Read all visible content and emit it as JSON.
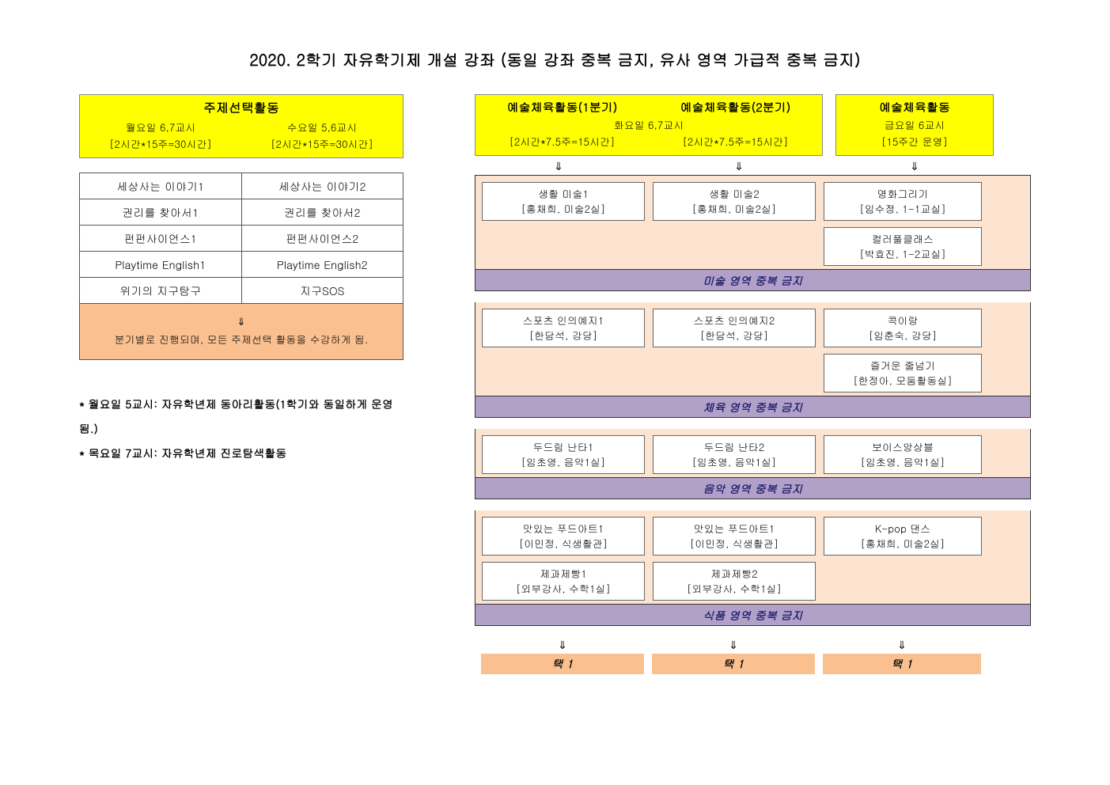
{
  "title": "2020. 2학기 자유학기제 개설 강좌 (동일 강좌 중복 금지, 유사 영역 가급적 중복 금지)",
  "left": {
    "header_title": "주제선택활동",
    "mon": {
      "time": "월요일 6,7교시",
      "hours": "[2시간*15주=30시간]"
    },
    "wed": {
      "time": "수요일 5,6교시",
      "hours": "[2시간*15주=30시간]"
    },
    "rows": [
      [
        "세상사는 이야기1",
        "세상사는 이야기2"
      ],
      [
        "권리를 찾아서1",
        "권리를 찾아서2"
      ],
      [
        "펀펀사이언스1",
        "펀펀사이언스2"
      ],
      [
        "Playtime English1",
        "Playtime English2"
      ],
      [
        "위기의 지구탐구",
        "지구SOS"
      ]
    ],
    "note_arrow": "⇓",
    "note_text": "분기별로 진행되며, 모든 주제선택 활동을 수강하게 됨.",
    "footer1": "* 월요일 5교시: 자유학년제 동아리활동(1학기와 동일하게 운영됨.)",
    "footer2": "* 목요일 7교시: 자유학년제 진로탐색활동"
  },
  "right": {
    "header": {
      "tue1_title": "예술체육활동(1분기)",
      "tue2_title": "예술체육활동(2분기)",
      "tue_time": "화요일 6,7교시",
      "tue1_hours": "[2시간*7.5주=15시간]",
      "tue2_hours": "[2시간*7.5주=15시간]",
      "fri_title": "예술체육활동",
      "fri_time": "금요일 6교시",
      "fri_hours": "[15주간 운영]"
    },
    "arrow": "⇓",
    "sections": [
      {
        "col1": [
          {
            "t": "생활 미술1",
            "s": "[홍채희, 미술2실]"
          }
        ],
        "col2": [
          {
            "t": "생활 미술2",
            "s": "[홍채희, 미술2실]"
          }
        ],
        "col3": [
          {
            "t": "명화그리기",
            "s": "[임수정, 1-1교실]"
          },
          {
            "t": "컬러풀클래스",
            "s": "[박효진, 1-2교실]"
          }
        ],
        "footer": "미술 영역 중복 금지"
      },
      {
        "col1": [
          {
            "t": "스포츠 인의예지1",
            "s": "[한담석, 강당]"
          }
        ],
        "col2": [
          {
            "t": "스포츠 인의예지2",
            "s": "[한담석, 강당]"
          }
        ],
        "col3": [
          {
            "t": "콕이랑",
            "s": "[임춘숙, 강당]"
          },
          {
            "t": "즐거운 줄넘기",
            "s": "[한정아, 모둠활동실]"
          }
        ],
        "footer": "체육 영역 중복 금지"
      },
      {
        "col1": [
          {
            "t": "두드림 난타1",
            "s": "[임초영, 음악1실]"
          }
        ],
        "col2": [
          {
            "t": "두드림 난타2",
            "s": "[임초영, 음악1실]"
          }
        ],
        "col3": [
          {
            "t": "보이스앙상블",
            "s": "[임초영, 음악1실]"
          }
        ],
        "footer": "음악 영역 중복 금지"
      },
      {
        "col1": [
          {
            "t": "맛있는 푸드아트1",
            "s": "[이민정, 식생활관]"
          },
          {
            "t": "제과제빵1",
            "s": "[외부강사, 수학1실]"
          }
        ],
        "col2": [
          {
            "t": "맛있는 푸드아트1",
            "s": "[이민정, 식생활관]"
          },
          {
            "t": "제과제빵2",
            "s": "[외부강사, 수학1실]"
          }
        ],
        "col3": [
          {
            "t": "K-pop 댄스",
            "s": "[홍채희, 미술2실]"
          }
        ],
        "footer": "식품 영역 중복 금지"
      }
    ],
    "pick_label": "택 1"
  },
  "colors": {
    "yellow": "#ffff00",
    "peach_light": "#fde4d0",
    "peach_dark": "#fac090",
    "lavender": "#b1a0c7"
  }
}
